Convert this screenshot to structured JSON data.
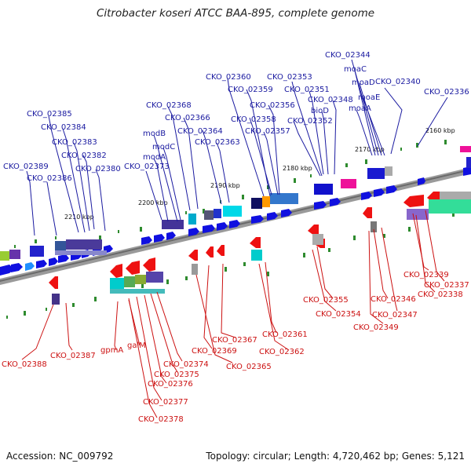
{
  "title": "Citrobacter koseri ATCC BAA-895, complete genome",
  "footer": {
    "accession": "Accession: NC_009792",
    "topology": "Topology: circular; Length: 4,720,462 bp; Genes: 5,121"
  },
  "scale_labels": [
    "2160 kbp",
    "2170 kbp",
    "2180 kbp",
    "2190 kbp",
    "2200 kbp",
    "2210 kbp"
  ],
  "top_gene_labels": [
    "CKO_02344",
    "moaC",
    "moaD",
    "CKO_02340",
    "moaE",
    "CKO_02336",
    "moaA",
    "CKO_02353",
    "CKO_02351",
    "CKO_02348",
    "bioD",
    "CKO_02352",
    "CKO_02360",
    "CKO_02359",
    "CKO_02356",
    "CKO_02358",
    "CKO_02357",
    "CKO_02368",
    "CKO_02366",
    "modB",
    "CKO_02364",
    "modC",
    "CKO_02363",
    "modA",
    "CKO_02385",
    "CKO_02384",
    "CKO_02383",
    "CKO_02382",
    "CKO_02380",
    "CKO_02389",
    "CKO_02386",
    "CKO_02373"
  ],
  "bottom_gene_labels": [
    "CKO_02339",
    "CKO_02337",
    "CKO_02338",
    "CKO_02346",
    "CKO_02347",
    "CKO_02349",
    "CKO_02355",
    "CKO_02354",
    "CKO_02361",
    "CKO_02362",
    "CKO_02367",
    "CKO_02369",
    "CKO_02365",
    "CKO_02374",
    "CKO_02375",
    "CKO_02376",
    "CKO_02377",
    "CKO_02378",
    "gpmA",
    "galM",
    "CKO_02388",
    "CKO_02387"
  ],
  "colors": {
    "forward_gene": "#1010e0",
    "reverse_gene": "#ee1111",
    "forward_label": "#1a1aa0",
    "reverse_label": "#cc1111",
    "backbone": "#888888",
    "tick": "#2e8b2e"
  }
}
